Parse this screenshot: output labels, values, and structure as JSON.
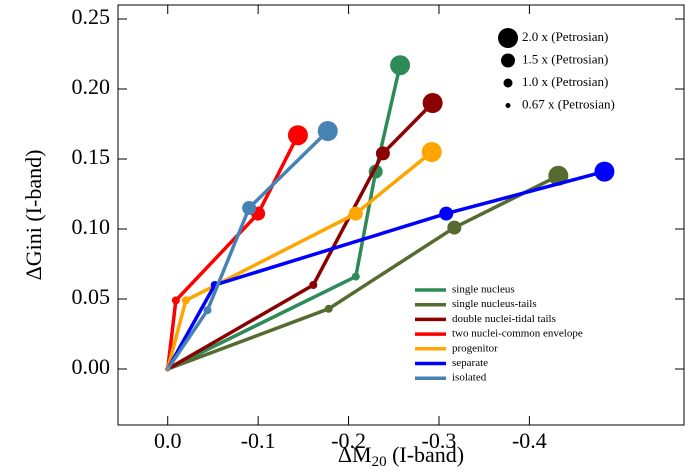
{
  "chart_data": {
    "type": "line",
    "xlabel": {
      "main": "ΔM",
      "sub": "20",
      "rest": " (I-band)"
    },
    "ylabel": "ΔGini (I-band)",
    "xlim": [
      0.055,
      -0.571
    ],
    "ylim": [
      -0.04,
      0.26
    ],
    "xticks": [
      {
        "value": 0,
        "label": "0.0"
      },
      -0.1,
      -0.2,
      -0.3,
      -0.4
    ],
    "yticks": [
      {
        "value": 0,
        "label": "0.00"
      },
      {
        "value": 0.05,
        "label": "0.05"
      },
      {
        "value": 0.1,
        "label": "0.10"
      },
      {
        "value": 0.15,
        "label": "0.15"
      },
      {
        "value": 0.2,
        "label": "0.20"
      },
      {
        "value": 0.25,
        "label": "0.25"
      }
    ],
    "size_legend": [
      "2.0 x (Petrosian)",
      "1.5 x (Petrosian)",
      "1.0 x (Petrosian)",
      "0.67 x (Petrosian)"
    ],
    "series": [
      {
        "name": "single nucleus",
        "color": "#2e8b57",
        "x": [
          0,
          -0.208,
          -0.23,
          -0.257
        ],
        "values": [
          0,
          0.066,
          0.141,
          0.217
        ]
      },
      {
        "name": "single nucleus-tails",
        "color": "#556b2f",
        "x": [
          0,
          -0.178,
          -0.317,
          -0.432
        ],
        "values": [
          0,
          0.043,
          0.101,
          0.138
        ]
      },
      {
        "name": "double nuclei-tidal tails",
        "color": "#8b0000",
        "x": [
          0,
          -0.161,
          -0.238,
          -0.293
        ],
        "values": [
          0,
          0.06,
          0.154,
          0.19
        ]
      },
      {
        "name": "two nuclei-common envelope",
        "color": "#ff0000",
        "x": [
          0,
          -0.009,
          -0.1,
          -0.144
        ],
        "values": [
          0,
          0.049,
          0.111,
          0.167
        ]
      },
      {
        "name": "progenitor",
        "color": "#ffa500",
        "x": [
          0,
          -0.02,
          -0.208,
          -0.292
        ],
        "values": [
          0,
          0.049,
          0.111,
          0.155
        ]
      },
      {
        "name": "separate",
        "color": "#0000ff",
        "x": [
          0,
          -0.052,
          -0.308,
          -0.483
        ],
        "values": [
          0,
          0.06,
          0.111,
          0.141
        ]
      },
      {
        "name": "isolated",
        "color": "#4682b4",
        "x": [
          0,
          -0.044,
          -0.09,
          -0.177
        ],
        "values": [
          0,
          0.042,
          0.115,
          0.17
        ]
      }
    ]
  }
}
